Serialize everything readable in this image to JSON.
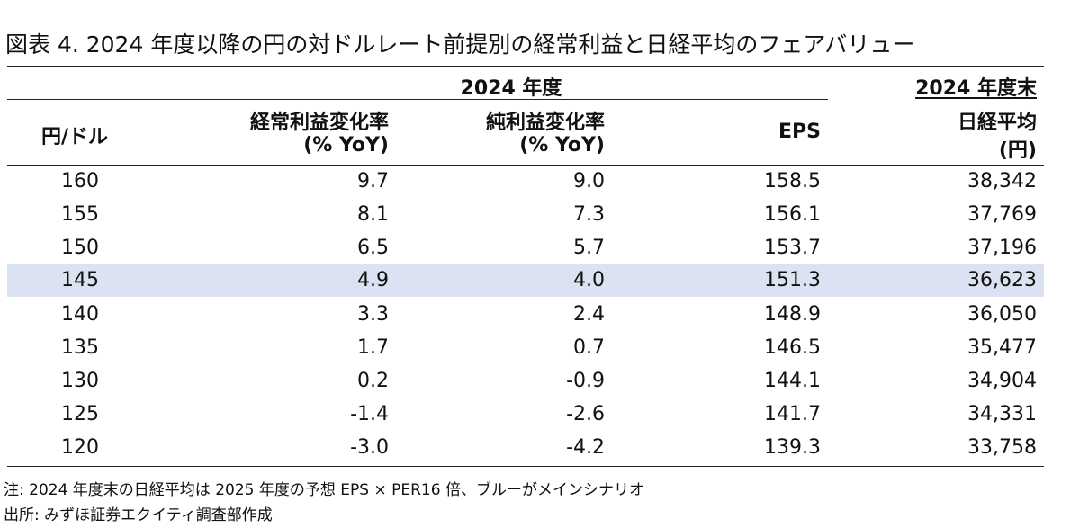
{
  "title": "図表 4. 2024 年度以降の円の対ドルレート前提別の経常利益と日経平均のフェアバリュー",
  "header": {
    "group_fy": "2024 年度",
    "group_fyend": "2024 年度末",
    "col_rate": "円/ドル",
    "col_ordinary_l1": "経常利益変化率",
    "col_ordinary_l2": "(% YoY)",
    "col_net_l1": "純利益変化率",
    "col_net_l2": "(% YoY)",
    "col_eps": "EPS",
    "col_nikkei_l1": "日経平均",
    "col_nikkei_l2": "(円)"
  },
  "rows": [
    {
      "rate": "160",
      "ordinary": "9.7",
      "net": "9.0",
      "eps": "158.5",
      "nikkei": "38,342"
    },
    {
      "rate": "155",
      "ordinary": "8.1",
      "net": "7.3",
      "eps": "156.1",
      "nikkei": "37,769"
    },
    {
      "rate": "150",
      "ordinary": "6.5",
      "net": "5.7",
      "eps": "153.7",
      "nikkei": "37,196"
    },
    {
      "rate": "145",
      "ordinary": "4.9",
      "net": "4.0",
      "eps": "151.3",
      "nikkei": "36,623"
    },
    {
      "rate": "140",
      "ordinary": "3.3",
      "net": "2.4",
      "eps": "148.9",
      "nikkei": "36,050"
    },
    {
      "rate": "135",
      "ordinary": "1.7",
      "net": "0.7",
      "eps": "146.5",
      "nikkei": "35,477"
    },
    {
      "rate": "130",
      "ordinary": "0.2",
      "net": "-0.9",
      "eps": "144.1",
      "nikkei": "34,904"
    },
    {
      "rate": "125",
      "ordinary": "-1.4",
      "net": "-2.6",
      "eps": "141.7",
      "nikkei": "34,331"
    },
    {
      "rate": "120",
      "ordinary": "-3.0",
      "net": "-4.2",
      "eps": "139.3",
      "nikkei": "33,758"
    }
  ],
  "highlight_color": "#dbe2f1",
  "note": "注: 2024 年度末の日経平均は 2025 年度の予想 EPS × PER16 倍、ブルーがメインシナリオ",
  "source": "出所: みずほ証券エクイティ調査部作成"
}
